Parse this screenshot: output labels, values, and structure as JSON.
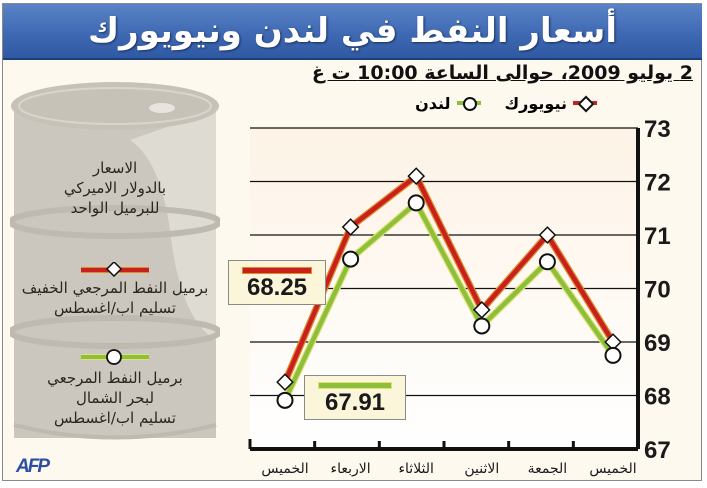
{
  "title": "أسعار النفط في لندن ونيويورك",
  "subtitle": "2 يوليو 2009، حوالى الساعة 10:00 ت غ",
  "legend": [
    {
      "label": "نيويورك",
      "marker": "diamond",
      "color": "#c8201c"
    },
    {
      "label": "لندن",
      "marker": "circle",
      "color": "#8cbf3a"
    }
  ],
  "barrel": {
    "units_text": [
      "الاسعار",
      "بالدولار الاميركي",
      "للبرميل الواحد"
    ],
    "ny_desc": [
      "برميل النفط المرجعي الخفيف",
      "تسليم اب/اغسطس"
    ],
    "london_desc": [
      "برميل النفط المرجعي",
      "لبحر الشمال",
      "تسليم اب/اغسطس"
    ]
  },
  "callouts": {
    "ny_value": "68.25",
    "london_value": "67.91"
  },
  "source": "AFP",
  "chart_data": {
    "type": "line",
    "title": "أسعار النفط في لندن ونيويورك",
    "subtitle": "2 يوليو 2009، حوالى الساعة 10:00 ت غ",
    "xlabel": "",
    "ylabel": "الاسعار بالدولار الاميركي للبرميل الواحد",
    "categories": [
      "الخميس",
      "الاربعاء",
      "الثلاثاء",
      "الاثنين",
      "الجمعة",
      "الخميس"
    ],
    "x_order_note": "right-to-left chronology; listed left-to-right as drawn",
    "series": [
      {
        "name": "نيويورك",
        "color": "#c8201c",
        "marker": "diamond",
        "values": [
          68.25,
          71.15,
          72.1,
          69.6,
          71.0,
          69.0
        ]
      },
      {
        "name": "لندن",
        "color": "#8cbf3a",
        "marker": "circle",
        "values": [
          67.91,
          70.55,
          71.6,
          69.3,
          70.5,
          68.75
        ]
      }
    ],
    "ylim": [
      67,
      73
    ],
    "yticks": [
      67,
      68,
      69,
      70,
      71,
      72,
      73
    ],
    "y_axis_position": "right",
    "grid": true,
    "legend_position": "top"
  }
}
